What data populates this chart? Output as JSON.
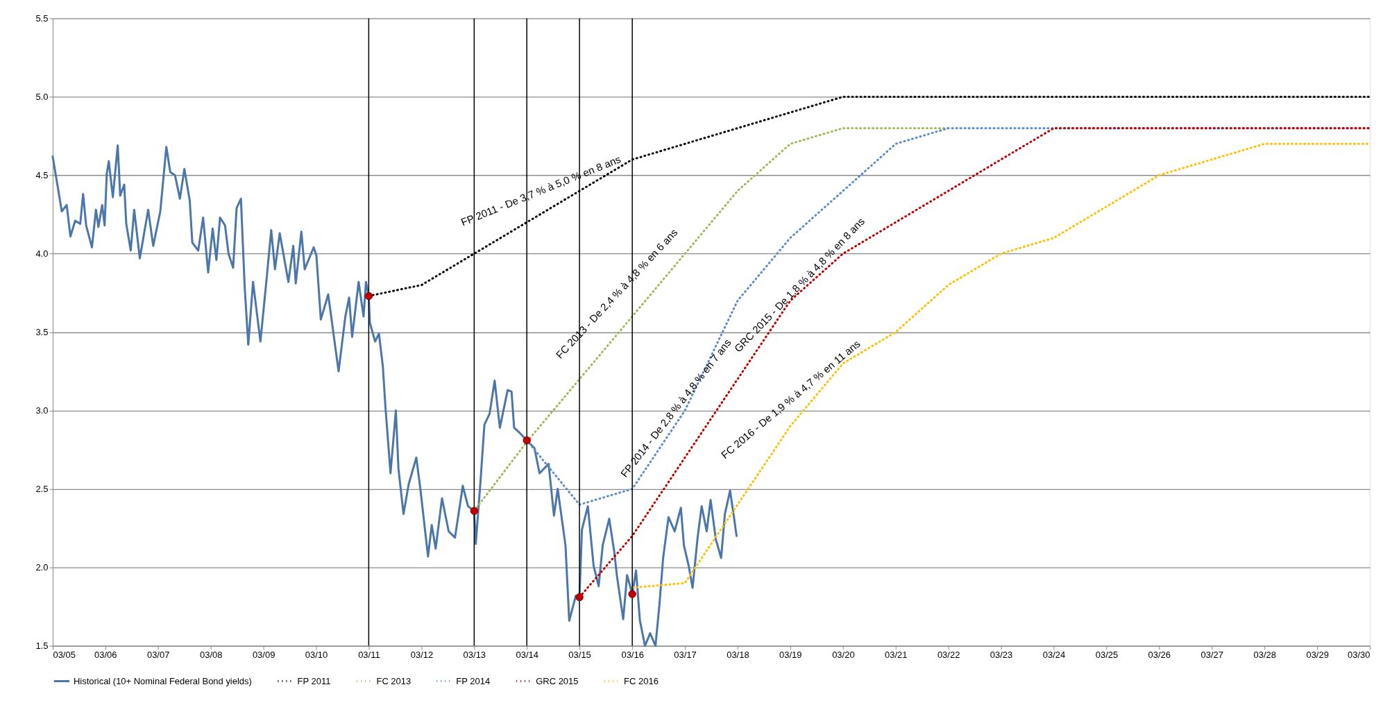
{
  "chart_data": {
    "type": "line",
    "xlim": [
      "2005-03",
      "2030-03"
    ],
    "xticks": [
      {
        "value": "2005-03",
        "label": "03/05"
      },
      {
        "value": "2006-03",
        "label": "03/06"
      },
      {
        "value": "2007-03",
        "label": "03/07"
      },
      {
        "value": "2008-03",
        "label": "03/08"
      },
      {
        "value": "2009-03",
        "label": "03/09"
      },
      {
        "value": "2010-03",
        "label": "03/10"
      },
      {
        "value": "2011-03",
        "label": "03/11"
      },
      {
        "value": "2012-03",
        "label": "03/12"
      },
      {
        "value": "2013-03",
        "label": "03/13"
      },
      {
        "value": "2014-03",
        "label": "03/14"
      },
      {
        "value": "2015-03",
        "label": "03/15"
      },
      {
        "value": "2016-03",
        "label": "03/16"
      },
      {
        "value": "2017-03",
        "label": "03/17"
      },
      {
        "value": "2018-03",
        "label": "03/18"
      },
      {
        "value": "2019-03",
        "label": "03/19"
      },
      {
        "value": "2020-03",
        "label": "03/20"
      },
      {
        "value": "2021-03",
        "label": "03/21"
      },
      {
        "value": "2022-03",
        "label": "03/22"
      },
      {
        "value": "2023-03",
        "label": "03/23"
      },
      {
        "value": "2024-03",
        "label": "03/24"
      },
      {
        "value": "2025-03",
        "label": "03/25"
      },
      {
        "value": "2026-03",
        "label": "03/26"
      },
      {
        "value": "2027-03",
        "label": "03/27"
      },
      {
        "value": "2028-03",
        "label": "03/28"
      },
      {
        "value": "2029-03",
        "label": "03/29"
      },
      {
        "value": "2030-03",
        "label": "03/30"
      }
    ],
    "ylim": [
      1.5,
      5.5
    ],
    "yticks": [
      1.5,
      {
        "value": 2,
        "label": "2.0"
      },
      2.5,
      {
        "value": 3,
        "label": "3.0"
      },
      3.5,
      {
        "value": 4,
        "label": "4.0"
      },
      4.5,
      {
        "value": 5,
        "label": "5.0"
      },
      5.5
    ],
    "grid": "y",
    "legend": "bottom",
    "series": [
      {
        "name": "Historical (10+ Nominal Federal Bond yields)",
        "color": "#4a76aa",
        "type": "line",
        "line_style": "solid",
        "x": [
          "2005-03-01",
          "2005-05-03",
          "2005-06-06",
          "2005-07-02",
          "2005-08-04",
          "2005-09-08",
          "2005-09-28",
          "2005-10-19",
          "2005-11-28",
          "2005-12-26",
          "2006-01-12",
          "2006-02-07",
          "2006-02-24",
          "2006-03-11",
          "2006-03-25",
          "2006-04-22",
          "2006-05-26",
          "2006-06-12",
          "2006-07-10",
          "2006-07-24",
          "2006-08-24",
          "2006-09-17",
          "2006-10-26",
          "2006-12-23",
          "2007-01-27",
          "2007-03-17",
          "2007-04-28",
          "2007-05-25",
          "2007-06-27",
          "2007-07-31",
          "2007-08-31",
          "2007-10-07",
          "2007-10-25",
          "2007-12-05",
          "2008-01-08",
          "2008-02-12",
          "2008-03-14",
          "2008-04-09",
          "2008-05-04",
          "2008-06-08",
          "2008-07-02",
          "2008-08-03",
          "2008-08-27",
          "2008-09-26",
          "2008-10-22",
          "2008-11-16",
          "2008-12-19",
          "2009-02-08",
          "2009-03-21",
          "2009-04-24",
          "2009-05-20",
          "2009-06-22",
          "2009-08-21",
          "2009-09-24",
          "2009-10-11",
          "2009-11-19",
          "2009-12-12",
          "2010-02-12",
          "2010-03-03",
          "2010-04-03",
          "2010-05-24",
          "2010-08-04",
          "2010-09-20",
          "2010-10-16",
          "2010-11-06",
          "2010-12-21",
          "2011-01-24",
          "2011-02-10",
          "2011-03-01",
          "2011-03-09",
          "2011-04-14",
          "2011-05-11",
          "2011-06-07",
          "2011-06-25",
          "2011-07-30",
          "2011-09-05",
          "2011-09-23",
          "2011-10-28",
          "2011-12-03",
          "2012-01-25",
          "2012-02-22",
          "2012-04-15",
          "2012-05-11",
          "2012-06-07",
          "2012-07-21",
          "2012-09-05",
          "2012-10-19",
          "2012-12-12",
          "2013-01-17",
          "2013-03-01",
          "2013-03-12",
          "2013-04-14",
          "2013-05-11",
          "2013-06-16",
          "2013-07-21",
          "2013-08-26",
          "2013-10-19",
          "2013-11-15",
          "2013-12-03",
          "2014-01-08",
          "2014-03-01",
          "2014-04-23",
          "2014-05-28",
          "2014-07-30",
          "2014-09-05",
          "2014-10-01",
          "2014-11-24",
          "2014-12-20",
          "2015-02-04",
          "2015-03-01",
          "2015-03-18",
          "2015-04-28",
          "2015-06-07",
          "2015-07-12",
          "2015-08-09",
          "2015-09-23",
          "2015-10-28",
          "2015-11-15",
          "2015-12-29",
          "2016-01-25",
          "2016-03-01",
          "2016-03-27",
          "2016-04-23",
          "2016-05-28",
          "2016-07-03",
          "2016-08-09",
          "2016-09-05",
          "2016-10-01",
          "2016-11-07",
          "2016-12-20",
          "2017-02-01",
          "2017-02-22",
          "2017-03-27",
          "2017-04-23",
          "2017-05-28",
          "2017-06-25",
          "2017-07-30",
          "2017-08-26",
          "2017-10-01",
          "2017-11-07",
          "2017-12-03",
          "2018-01-08",
          "2018-02-04",
          "2018-02-22"
        ],
        "values": [
          4.62,
          4.27,
          4.31,
          4.11,
          4.21,
          4.19,
          4.38,
          4.18,
          4.04,
          4.28,
          4.17,
          4.31,
          4.18,
          4.51,
          4.59,
          4.36,
          4.69,
          4.37,
          4.44,
          4.19,
          4.02,
          4.28,
          3.97,
          4.28,
          4.05,
          4.27,
          4.68,
          4.52,
          4.5,
          4.35,
          4.54,
          4.34,
          4.07,
          4.02,
          4.23,
          3.88,
          4.16,
          3.96,
          4.23,
          4.18,
          4.0,
          3.91,
          4.29,
          4.35,
          3.79,
          3.42,
          3.82,
          3.44,
          3.82,
          4.15,
          3.9,
          4.13,
          3.82,
          4.05,
          3.81,
          4.14,
          3.9,
          4.04,
          3.99,
          3.58,
          3.74,
          3.25,
          3.6,
          3.72,
          3.47,
          3.82,
          3.6,
          3.82,
          3.73,
          3.56,
          3.44,
          3.49,
          3.28,
          3.02,
          2.6,
          3.0,
          2.63,
          2.34,
          2.53,
          2.7,
          2.5,
          2.07,
          2.27,
          2.12,
          2.44,
          2.23,
          2.19,
          2.52,
          2.39,
          2.36,
          2.15,
          2.55,
          2.91,
          2.98,
          3.19,
          2.89,
          3.13,
          3.12,
          2.89,
          2.86,
          2.81,
          2.76,
          2.6,
          2.66,
          2.33,
          2.5,
          2.14,
          1.66,
          1.82,
          1.81,
          2.24,
          2.39,
          2.01,
          1.88,
          2.14,
          2.31,
          2.1,
          1.95,
          1.67,
          1.95,
          1.83,
          1.98,
          1.66,
          1.5,
          1.58,
          1.5,
          1.76,
          2.06,
          2.32,
          2.23,
          2.38,
          2.14,
          2.01,
          1.87,
          2.19,
          2.39,
          2.23,
          2.43,
          2.18,
          2.06,
          2.34,
          2.49,
          2.32,
          2.2
        ]
      },
      {
        "name": "FP 2011",
        "color": "#000000",
        "type": "line",
        "line_style": "dotted",
        "x": [
          "2011-03",
          "2012-03",
          "2013-03",
          "2014-03",
          "2015-03",
          "2016-03",
          "2017-03",
          "2018-03",
          "2019-03",
          "2020-03",
          "2021-03",
          "2022-03",
          "2023-03",
          "2024-03",
          "2025-03",
          "2026-03",
          "2027-03",
          "2028-03",
          "2029-03",
          "2030-03"
        ],
        "values": [
          3.73,
          3.8,
          4.0,
          4.2,
          4.4,
          4.6,
          4.7,
          4.8,
          4.9,
          5.0,
          5.0,
          5.0,
          5.0,
          5.0,
          5.0,
          5.0,
          5.0,
          5.0,
          5.0,
          5.0
        ]
      },
      {
        "name": "FC 2013",
        "color": "#9bbb59",
        "type": "line",
        "line_style": "dotted",
        "x": [
          "2013-03",
          "2014-03",
          "2015-03",
          "2016-03",
          "2017-03",
          "2018-03",
          "2019-03",
          "2020-03",
          "2021-03",
          "2022-03"
        ],
        "values": [
          2.36,
          2.8,
          3.2,
          3.6,
          4.0,
          4.4,
          4.7,
          4.8,
          4.8,
          4.8
        ]
      },
      {
        "name": "FP 2014",
        "color": "#5a8ccc",
        "type": "line",
        "line_style": "dotted",
        "x": [
          "2014-03",
          "2015-03",
          "2016-03",
          "2017-03",
          "2018-03",
          "2019-03",
          "2020-03",
          "2021-03",
          "2022-03",
          "2023-03",
          "2024-03",
          "2025-03",
          "2026-03",
          "2027-03",
          "2028-03",
          "2029-03",
          "2030-03"
        ],
        "values": [
          2.81,
          2.4,
          2.5,
          3.0,
          3.7,
          4.1,
          4.4,
          4.7,
          4.8,
          4.8,
          4.8,
          4.8,
          4.8,
          4.8,
          4.8,
          4.8,
          4.8
        ]
      },
      {
        "name": "GRC 2015",
        "color": "#c00000",
        "type": "line",
        "line_style": "dotted",
        "x": [
          "2015-03",
          "2016-03",
          "2017-03",
          "2018-03",
          "2019-03",
          "2020-03",
          "2021-03",
          "2022-03",
          "2023-03",
          "2024-03",
          "2025-03",
          "2026-03",
          "2027-03",
          "2028-03",
          "2029-03",
          "2030-03"
        ],
        "values": [
          1.81,
          2.2,
          2.7,
          3.2,
          3.7,
          4.0,
          4.2,
          4.4,
          4.6,
          4.8,
          4.8,
          4.8,
          4.8,
          4.8,
          4.8,
          4.8
        ]
      },
      {
        "name": "FC 2016",
        "color": "#ffc000",
        "type": "line",
        "line_style": "dotted",
        "x": [
          "2016-03",
          "2017-03",
          "2018-03",
          "2019-03",
          "2020-03",
          "2021-03",
          "2022-03",
          "2023-03",
          "2024-03",
          "2025-03",
          "2026-03",
          "2027-03",
          "2028-03",
          "2029-03",
          "2030-03"
        ],
        "values": [
          1.87,
          1.9,
          2.4,
          2.9,
          3.3,
          3.5,
          3.8,
          4.0,
          4.1,
          4.3,
          4.5,
          4.6,
          4.7,
          4.7,
          4.7
        ]
      },
      {
        "color": "#c00000",
        "type": "scatter",
        "marker": "circle",
        "x": [
          "2011-03-01",
          "2013-03-01",
          "2014-03-01",
          "2015-03-01",
          "2016-03-01"
        ],
        "values": [
          3.73,
          2.36,
          2.81,
          1.81,
          1.83
        ]
      }
    ],
    "ref_lines": [
      {
        "axis": "x",
        "value": "2011-03-01",
        "color": "#000000",
        "line_style": "solid"
      },
      {
        "axis": "x",
        "value": "2013-03-01",
        "color": "#000000",
        "line_style": "solid"
      },
      {
        "axis": "x",
        "value": "2014-03-01",
        "color": "#000000",
        "line_style": "solid"
      },
      {
        "axis": "x",
        "value": "2015-03-01",
        "color": "#000000",
        "line_style": "solid"
      },
      {
        "axis": "x",
        "value": "2016-03-01",
        "color": "#000000",
        "line_style": "solid"
      }
    ],
    "annotations": [
      "FP 2011 - De 3,7 % à 5,0 % en 8 ans",
      "FC 2013 - De 2,4 % à 4,8 % en 6 ans",
      "FP 2014 - De 2,8 % à 4,8 % en 7 ans",
      "GRC 2015 - De 1,8 % à 4,8 % en 8 ans",
      "FC 2016 - De 1,9 % à 4,7 % en 11 ans"
    ]
  }
}
